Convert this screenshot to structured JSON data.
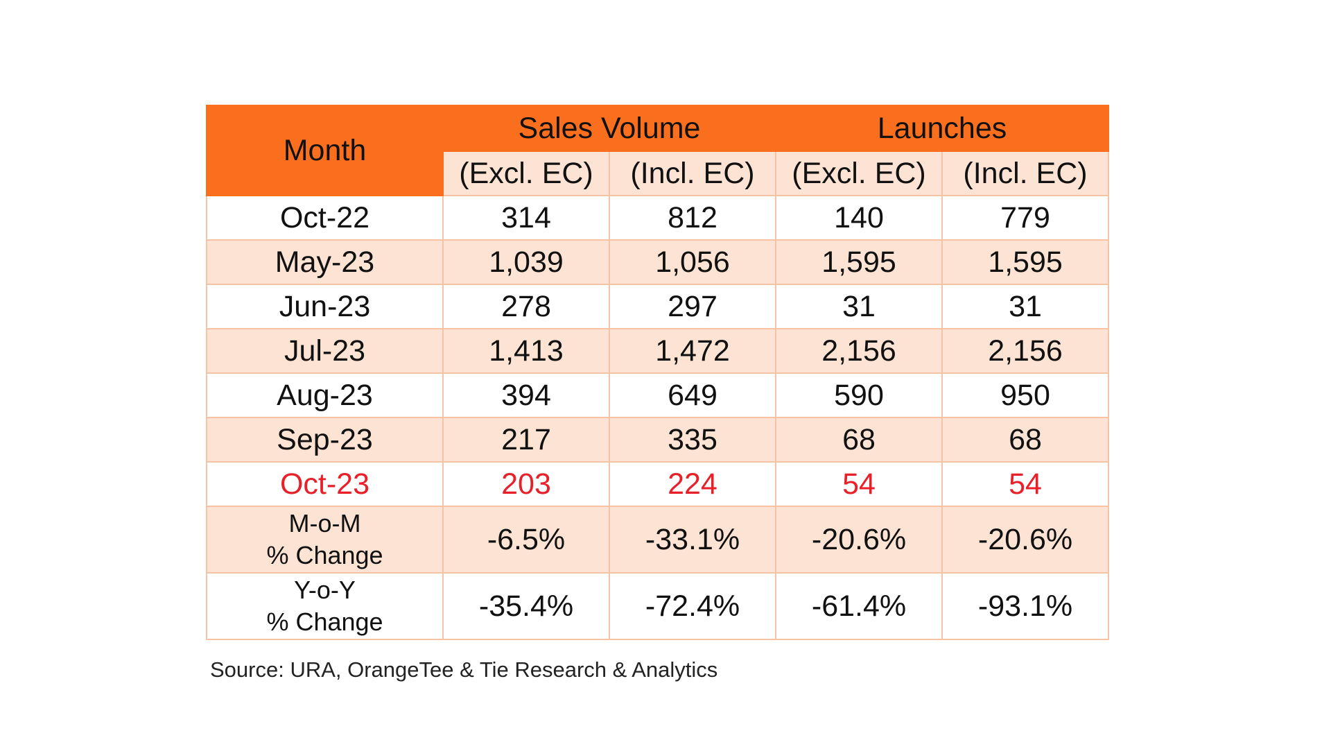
{
  "chart_data": {
    "type": "table",
    "header": {
      "month_label": "Month",
      "groups": [
        "Sales Volume",
        "Launches"
      ],
      "subheaders": [
        "(Excl. EC)",
        "(Incl. EC)",
        "(Excl. EC)",
        "(Incl. EC)"
      ]
    },
    "rows": [
      {
        "month": "Oct-22",
        "values": [
          "314",
          "812",
          "140",
          "779"
        ]
      },
      {
        "month": "May-23",
        "values": [
          "1,039",
          "1,056",
          "1,595",
          "1,595"
        ]
      },
      {
        "month": "Jun-23",
        "values": [
          "278",
          "297",
          "31",
          "31"
        ]
      },
      {
        "month": "Jul-23",
        "values": [
          "1,413",
          "1,472",
          "2,156",
          "2,156"
        ]
      },
      {
        "month": "Aug-23",
        "values": [
          "394",
          "649",
          "590",
          "950"
        ]
      },
      {
        "month": "Sep-23",
        "values": [
          "217",
          "335",
          "68",
          "68"
        ]
      },
      {
        "month": "Oct-23",
        "values": [
          "203",
          "224",
          "54",
          "54"
        ]
      }
    ],
    "changes": [
      {
        "label_line1": "M-o-M",
        "label_line2": "% Change",
        "values": [
          "-6.5%",
          "-33.1%",
          "-20.6%",
          "-20.6%"
        ]
      },
      {
        "label_line1": "Y-o-Y",
        "label_line2": "% Change",
        "values": [
          "-35.4%",
          "-72.4%",
          "-61.4%",
          "-93.1%"
        ]
      }
    ],
    "source": "Source: URA, OrangeTee & Tie Research & Analytics"
  },
  "colors": {
    "header_bg": "#f96f1e",
    "band_bg": "#fde3d3",
    "highlight_text": "#e8202a",
    "border": "#f6c4a4"
  }
}
